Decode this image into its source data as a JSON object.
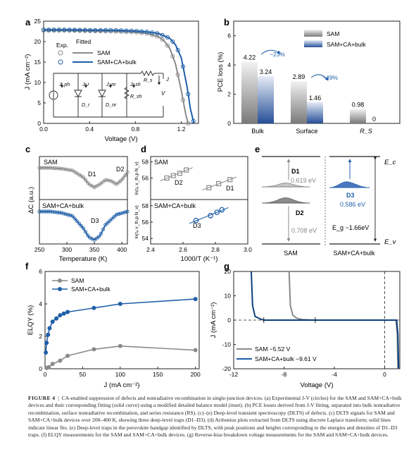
{
  "panels": {
    "a": {
      "letter": "a",
      "xlabel": "Voltage (V)",
      "ylabel": "J (mA cm⁻²)",
      "xticks": [
        "0.0",
        "0.4",
        "0.8",
        "1.2"
      ],
      "yticks": [
        "0",
        "5",
        "10",
        "15",
        "20",
        "25"
      ],
      "legend_head_exp": "Exp.",
      "legend_head_fit": "Fitted",
      "legend_items": [
        "SAM",
        "SAM+CA+bulk"
      ],
      "circuit_labels": {
        "jph": "J_ph",
        "jr": "J_r",
        "jnr": "J_nr",
        "jsh": "J_sh",
        "dr": "D_r",
        "dnr": "D_nr",
        "rsh": "R_sh",
        "rs": "R_s",
        "j": "J",
        "v": "V"
      }
    },
    "b": {
      "letter": "b",
      "ylabel": "PCE loss (%)",
      "yticks": [
        "0",
        "2",
        "4",
        "6"
      ],
      "categories": [
        "Bulk",
        "Surface",
        "R_S"
      ],
      "legend_items": [
        "SAM",
        "SAM+CA+bulk"
      ],
      "value_labels": [
        "4.22",
        "3.24",
        "2.89",
        "1.46",
        "0.98",
        "0"
      ],
      "annotations": [
        "~23%",
        "~49%"
      ]
    },
    "c": {
      "letter": "c",
      "xlabel": "Temperature (K)",
      "ylabel": "ΔC (a.u.)",
      "xticks": [
        "250",
        "300",
        "350",
        "400"
      ],
      "labels_top": [
        "SAM",
        "D1",
        "D2"
      ],
      "labels_bottom": [
        "SAM+CA+bulk",
        "D3"
      ]
    },
    "d": {
      "letter": "d",
      "xlabel": "1000/T (K⁻¹)",
      "xticks": [
        "2.4",
        "2.6",
        "2.8",
        "3.0"
      ],
      "ylabel": "ln(τₑ v_th,p N_v)",
      "top_yticks": [
        "56",
        "58"
      ],
      "bottom_yticks": [
        "54",
        "56",
        "58"
      ],
      "labels_top": [
        "SAM",
        "D2",
        "D1"
      ],
      "labels_bottom": [
        "SAM+CA+bulk",
        "D3"
      ]
    },
    "e": {
      "letter": "e",
      "ec": "E_c",
      "ev": "E_v",
      "d1": "D1",
      "d1_energy": "0.619 eV",
      "d2": "D2",
      "d2_energy": "0.708 eV",
      "d3": "D3",
      "d3_energy": "0.586 eV",
      "eg": "E_g ~1.66eV",
      "left_label": "SAM",
      "right_label": "SAM+CA+bulk"
    },
    "f": {
      "letter": "f",
      "xlabel": "J (mA cm⁻²)",
      "ylabel": "ELQY (%)",
      "xticks": [
        "0",
        "50",
        "100",
        "150",
        "200"
      ],
      "yticks": [
        "0",
        "2",
        "4",
        "6"
      ],
      "legend_items": [
        "SAM",
        "SAM+CA+bulk"
      ]
    },
    "g": {
      "letter": "g",
      "xlabel": "Voltage (V)",
      "ylabel": "J (mA cm⁻²)",
      "xticks": [
        "-12",
        "-8",
        "-4",
        "0"
      ],
      "yticks": [
        "20",
        "10",
        "0",
        "-10",
        "-20"
      ],
      "legend_items": [
        "SAM   −5.52 V",
        "SAM+CA+bulk  −9.61 V"
      ]
    }
  },
  "caption": {
    "label": "FIGURE  4",
    "text": "CA-enabled suppression of defects and nonradiative recombination in single-junction devices. (a) Experimental J-V (circles) for the SAM and SAM+CA+bulk devices and their corresponding fitting (solid curve) using a modified detailed balance model (inset). (b) PCE losses derived from J-V fitting, separated into bulk nonradiative recombination, surface nonradiative recombination, and series resistance (RS). (c)–(e) Deep-level transient spectroscopy (DLTS) of defects. (c) DLTS signals for SAM and SAM+CA+bulk devices over 200–400 K, showing three deep-level traps (D1–D3). (d) Arrhenius plots extracted from DLTS using discrete Laplace transform; solid lines indicate linear fits. (e) Deep-level traps in the perovskite bandgap identified by DLTS, with peak positions and heights corresponding to the energies and densities of D1–D3 traps. (f) ELQY measurements for the SAM and SAM+CA+bulk devices. (g) Reverse-bias breakdown voltage measurements for the SAM and SAM+CA+bulk devices."
  },
  "colors": {
    "gray": "#8a8a8a",
    "blue": "#1f5fa8",
    "darkblue": "#0d3f7a"
  },
  "chart_data": [
    {
      "panel": "a",
      "type": "line",
      "xlim": [
        0,
        1.35
      ],
      "ylim": [
        0,
        25
      ],
      "series": [
        {
          "name": "SAM",
          "x": [
            0,
            0.2,
            0.4,
            0.6,
            0.8,
            0.9,
            1.0,
            1.05,
            1.1,
            1.15,
            1.2,
            1.24,
            1.26
          ],
          "y": [
            22.7,
            22.7,
            22.6,
            22.5,
            22.3,
            22.0,
            21.2,
            20.2,
            18.3,
            14.5,
            8.0,
            2.0,
            0
          ]
        },
        {
          "name": "SAM+CA+bulk",
          "x": [
            0,
            0.2,
            0.4,
            0.6,
            0.8,
            0.9,
            1.0,
            1.1,
            1.15,
            1.2,
            1.25,
            1.28,
            1.31
          ],
          "y": [
            22.9,
            22.9,
            22.8,
            22.8,
            22.6,
            22.4,
            22.0,
            20.8,
            19.2,
            16.0,
            9.0,
            3.5,
            0
          ]
        }
      ]
    },
    {
      "panel": "b",
      "type": "bar",
      "categories": [
        "Bulk",
        "Surface",
        "R_S"
      ],
      "ylim": [
        0,
        7
      ],
      "series": [
        {
          "name": "SAM",
          "values": [
            4.22,
            2.89,
            0.98
          ]
        },
        {
          "name": "SAM+CA+bulk",
          "values": [
            3.24,
            1.46,
            0
          ]
        }
      ]
    },
    {
      "panel": "c",
      "type": "line",
      "xlim": [
        250,
        410
      ],
      "series": [
        {
          "name": "SAM",
          "x": [
            250,
            270,
            290,
            310,
            330,
            340,
            350,
            360,
            370,
            380,
            390,
            400,
            410
          ],
          "y": [
            1.0,
            1.0,
            0.98,
            0.94,
            0.78,
            0.62,
            0.55,
            0.62,
            0.72,
            0.7,
            0.62,
            0.72,
            0.9
          ]
        },
        {
          "name": "SAM+CA+bulk",
          "x": [
            250,
            270,
            290,
            310,
            330,
            340,
            350,
            360,
            370,
            390,
            410
          ],
          "y": [
            1.0,
            1.0,
            0.97,
            0.9,
            0.62,
            0.42,
            0.36,
            0.45,
            0.7,
            0.93,
            1.0
          ]
        }
      ]
    },
    {
      "panel": "d",
      "type": "scatter",
      "xlim": [
        2.4,
        3.0
      ],
      "series": [
        {
          "name": "D2",
          "x": [
            2.5,
            2.54,
            2.58,
            2.62
          ],
          "y": [
            56.0,
            56.3,
            56.6,
            57.0
          ]
        },
        {
          "name": "D1",
          "x": [
            2.76,
            2.82,
            2.89
          ],
          "y": [
            54.8,
            55.3,
            55.8
          ]
        },
        {
          "name": "D3",
          "x": [
            2.68,
            2.77,
            2.81,
            2.84
          ],
          "y": [
            56.2,
            56.8,
            57.2,
            57.5
          ]
        }
      ]
    },
    {
      "panel": "f",
      "type": "line",
      "xlim": [
        0,
        205
      ],
      "ylim": [
        0,
        6
      ],
      "series": [
        {
          "name": "SAM",
          "x": [
            2,
            5,
            10,
            20,
            30,
            65,
            100,
            200
          ],
          "y": [
            0.05,
            0.1,
            0.3,
            0.5,
            0.8,
            1.2,
            1.4,
            1.15
          ]
        },
        {
          "name": "SAM+CA+bulk",
          "x": [
            1,
            2,
            4,
            6,
            10,
            15,
            20,
            25,
            30,
            65,
            100,
            200
          ],
          "y": [
            1.0,
            1.6,
            2.1,
            2.5,
            2.9,
            3.1,
            3.3,
            3.4,
            3.5,
            3.75,
            4.0,
            4.3
          ]
        }
      ]
    },
    {
      "panel": "g",
      "type": "line",
      "xlim": [
        -12,
        1.2
      ],
      "ylim": [
        -20,
        20
      ],
      "series": [
        {
          "name": "SAM",
          "x": [
            -7.6,
            -7.5,
            -7.3,
            -7.0,
            -6.5,
            -5.52,
            -3,
            0,
            0.9,
            1.0,
            1.05
          ],
          "y": [
            20,
            6,
            2,
            0.8,
            0.2,
            0,
            0,
            0,
            0,
            -6,
            -20
          ]
        },
        {
          "name": "SAM+CA+bulk",
          "x": [
            -10.6,
            -10.5,
            -10.3,
            -9.8,
            -9.61,
            -6,
            -3,
            0,
            0.95,
            1.05,
            1.1
          ],
          "y": [
            20,
            6,
            1.5,
            0.3,
            0,
            0,
            0,
            0,
            0,
            -6,
            -20
          ]
        }
      ]
    }
  ]
}
